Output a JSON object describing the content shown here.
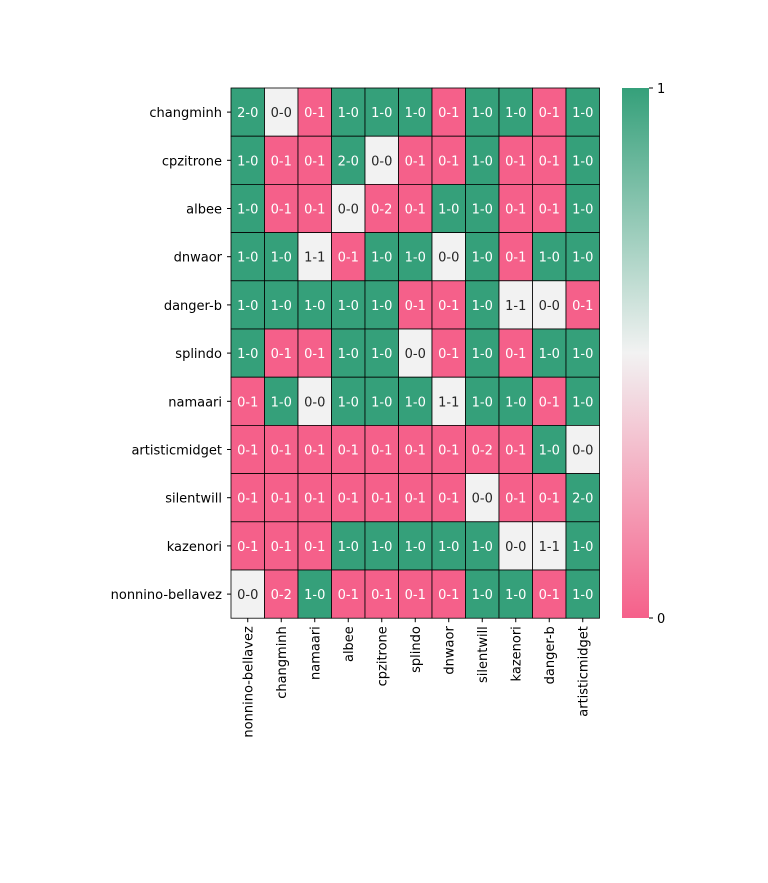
{
  "chart_data": {
    "type": "heatmap",
    "title": "",
    "xlabel": "",
    "ylabel": "",
    "rows": [
      "changminh",
      "cpzitrone",
      "albee",
      "dnwaor",
      "danger-b",
      "splindo",
      "namaari",
      "artisticmidget",
      "silentwill",
      "kazenori",
      "nonnino-bellavez"
    ],
    "columns": [
      "nonnino-bellavez",
      "changminh",
      "namaari",
      "albee",
      "cpzitrone",
      "splindo",
      "dnwaor",
      "silentwill",
      "kazenori",
      "danger-b",
      "artisticmidget"
    ],
    "labels": [
      [
        "2-0",
        "0-0",
        "0-1",
        "1-0",
        "1-0",
        "1-0",
        "0-1",
        "1-0",
        "1-0",
        "0-1",
        "1-0"
      ],
      [
        "1-0",
        "0-1",
        "0-1",
        "2-0",
        "0-0",
        "0-1",
        "0-1",
        "1-0",
        "0-1",
        "0-1",
        "1-0"
      ],
      [
        "1-0",
        "0-1",
        "0-1",
        "0-0",
        "0-2",
        "0-1",
        "1-0",
        "1-0",
        "0-1",
        "0-1",
        "1-0"
      ],
      [
        "1-0",
        "1-0",
        "1-1",
        "0-1",
        "1-0",
        "1-0",
        "0-0",
        "1-0",
        "0-1",
        "1-0",
        "1-0"
      ],
      [
        "1-0",
        "1-0",
        "1-0",
        "1-0",
        "1-0",
        "0-1",
        "0-1",
        "1-0",
        "1-1",
        "0-0",
        "0-1"
      ],
      [
        "1-0",
        "0-1",
        "0-1",
        "1-0",
        "1-0",
        "0-0",
        "0-1",
        "1-0",
        "0-1",
        "1-0",
        "1-0"
      ],
      [
        "0-1",
        "1-0",
        "0-0",
        "1-0",
        "1-0",
        "1-0",
        "1-1",
        "1-0",
        "1-0",
        "0-1",
        "1-0"
      ],
      [
        "0-1",
        "0-1",
        "0-1",
        "0-1",
        "0-1",
        "0-1",
        "0-1",
        "0-2",
        "0-1",
        "1-0",
        "0-0"
      ],
      [
        "0-1",
        "0-1",
        "0-1",
        "0-1",
        "0-1",
        "0-1",
        "0-1",
        "0-0",
        "0-1",
        "0-1",
        "2-0"
      ],
      [
        "0-1",
        "0-1",
        "0-1",
        "1-0",
        "1-0",
        "1-0",
        "1-0",
        "1-0",
        "0-0",
        "1-1",
        "1-0"
      ],
      [
        "0-0",
        "0-2",
        "1-0",
        "0-1",
        "0-1",
        "0-1",
        "0-1",
        "1-0",
        "1-0",
        "0-1",
        "1-0"
      ]
    ],
    "values": [
      [
        1,
        0.5,
        0,
        1,
        1,
        1,
        0,
        1,
        1,
        0,
        1
      ],
      [
        1,
        0,
        0,
        1,
        0.5,
        0,
        0,
        1,
        0,
        0,
        1
      ],
      [
        1,
        0,
        0,
        0.5,
        0,
        0,
        1,
        1,
        0,
        0,
        1
      ],
      [
        1,
        1,
        0.5,
        0,
        1,
        1,
        0.5,
        1,
        0,
        1,
        1
      ],
      [
        1,
        1,
        1,
        1,
        1,
        0,
        0,
        1,
        0.5,
        0.5,
        0
      ],
      [
        1,
        0,
        0,
        1,
        1,
        0.5,
        0,
        1,
        0,
        1,
        1
      ],
      [
        0,
        1,
        0.5,
        1,
        1,
        1,
        0.5,
        1,
        1,
        0,
        1
      ],
      [
        0,
        0,
        0,
        0,
        0,
        0,
        0,
        0,
        0,
        1,
        0.5
      ],
      [
        0,
        0,
        0,
        0,
        0,
        0,
        0,
        0.5,
        0,
        0,
        1
      ],
      [
        0,
        0,
        0,
        1,
        1,
        1,
        1,
        1,
        0.5,
        0.5,
        1
      ],
      [
        0.5,
        0,
        1,
        0,
        0,
        0,
        0,
        1,
        1,
        0,
        1
      ]
    ],
    "vmin": 0,
    "vmax": 1,
    "colorbar": {
      "ticks": [
        "0",
        "1"
      ]
    },
    "colors": {
      "low": "#f5608a",
      "mid": "#f2f2f2",
      "high": "#35a07a"
    }
  }
}
